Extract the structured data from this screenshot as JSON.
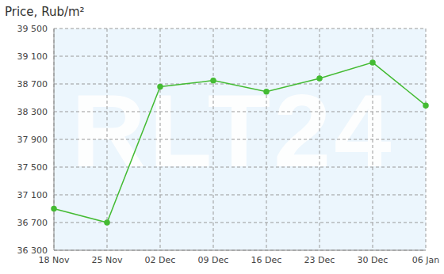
{
  "chart_data": {
    "type": "line",
    "title": "Price, Rub/m²",
    "annotations": [
      "RLT24"
    ],
    "categories": [
      "18 Nov",
      "25 Nov",
      "02 Dec",
      "09 Dec",
      "16 Dec",
      "23 Dec",
      "30 Dec",
      "06 Jan"
    ],
    "values": [
      36900,
      36700,
      38660,
      38750,
      38590,
      38780,
      39010,
      38390
    ],
    "color": "#44bb33",
    "marker": "circle",
    "ylim": [
      36300,
      39500
    ],
    "yticks": [
      {
        "value": 36300,
        "label": "36 300"
      },
      {
        "value": 36700,
        "label": "36 700"
      },
      {
        "value": 37100,
        "label": "37 100"
      },
      {
        "value": 37500,
        "label": "37 500"
      },
      {
        "value": 37900,
        "label": "37 900"
      },
      {
        "value": 38300,
        "label": "38 300"
      },
      {
        "value": 38700,
        "label": "38 700"
      },
      {
        "value": 39100,
        "label": "39 100"
      },
      {
        "value": 39500,
        "label": "39 500"
      }
    ],
    "grid": true
  }
}
